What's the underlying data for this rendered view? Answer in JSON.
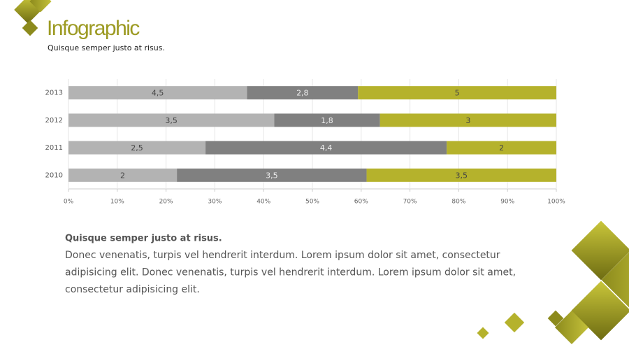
{
  "chart_data": {
    "type": "bar",
    "stacked": "percent",
    "orientation": "horizontal",
    "title": "Infographic",
    "subtitle": "Quisque semper justo at risus.",
    "categories": [
      "2013",
      "2012",
      "2011",
      "2010"
    ],
    "series": [
      {
        "color": "#b3b3b3",
        "label_color": "#444444",
        "values": [
          4.5,
          3.5,
          2.5,
          2
        ],
        "value_labels": [
          "4,5",
          "3,5",
          "2,5",
          "2"
        ]
      },
      {
        "color": "#808080",
        "label_color": "#eeeeee",
        "values": [
          2.8,
          1.8,
          4.4,
          3.5
        ],
        "value_labels": [
          "2,8",
          "1,8",
          "4,4",
          "3,5"
        ]
      },
      {
        "color": "#b5b22c",
        "label_color": "#444444",
        "values": [
          5,
          3,
          2,
          3.5
        ],
        "value_labels": [
          "5",
          "3",
          "2",
          "3,5"
        ]
      }
    ],
    "xlim": [
      0,
      100
    ],
    "xticks": [
      {
        "value": 0,
        "label": "0%"
      },
      {
        "value": 10,
        "label": "10%"
      },
      {
        "value": 20,
        "label": "20%"
      },
      {
        "value": 30,
        "label": "30%"
      },
      {
        "value": 40,
        "label": "40%"
      },
      {
        "value": 50,
        "label": "50%"
      },
      {
        "value": 60,
        "label": "60%"
      },
      {
        "value": 70,
        "label": "70%"
      },
      {
        "value": 80,
        "label": "80%"
      },
      {
        "value": 90,
        "label": "90%"
      },
      {
        "value": 100,
        "label": "100%"
      }
    ],
    "grid": true
  },
  "text_block": {
    "heading": "Quisque semper justo at risus.",
    "lines": [
      "Donec venenatis, turpis vel hendrerit interdum.  Lorem ipsum dolor sit amet, consectetur",
      "adipisicing elit. Donec venenatis, turpis vel hendrerit interdum.  Lorem ipsum dolor sit amet,",
      "consectetur adipisicing elit."
    ]
  }
}
